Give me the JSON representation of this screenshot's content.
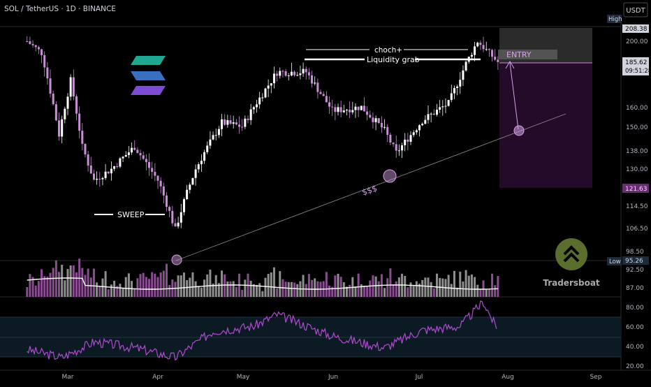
{
  "header": {
    "symbol_line": "SOL / TetherUS · 1D · BINANCE",
    "currency": "USDT"
  },
  "price_axis": {
    "ticks": [
      "200.00",
      "160.00",
      "150.00",
      "138.00",
      "130.00",
      "114.50",
      "106.50",
      "98.50",
      "92.50",
      "87.00"
    ],
    "high_label": "High",
    "high_value": "208.38",
    "last_value": "185.62",
    "countdown": "09:51:28",
    "stop_value": "121.63",
    "low_label": "Low",
    "low_value": "95.26"
  },
  "rsi_axis": {
    "ticks": [
      "80.00",
      "60.00",
      "40.00",
      "20.00"
    ]
  },
  "time_axis": {
    "ticks": [
      "Mar",
      "Apr",
      "May",
      "Jun",
      "Jul",
      "Aug",
      "Sep"
    ]
  },
  "annotations": {
    "sweep": "SWEEP",
    "choch": "choch+",
    "liquidity": "Liquidity grab",
    "entry": "ENTRY",
    "dollars": "$$$"
  },
  "brand": {
    "name": "Tradersboat"
  },
  "colors": {
    "background": "#000000",
    "candle": "#ffffff",
    "candle_alt": "#c98fd6",
    "accent": "#d6a3e6",
    "volume_up": "#8e8e8e",
    "volume_down": "#8a4d92",
    "ma": "#ffffff",
    "rsi": "#b14bd1",
    "zone_gray": "#3a3a3a",
    "zone_purple": "#2c0d31",
    "brand_green": "#5c6e2e"
  },
  "chart_data": {
    "type": "candlestick",
    "symbol": "SOL/USDT",
    "timeframe": "1D",
    "y_axis_prices": [
      87.0,
      92.5,
      98.5,
      106.5,
      114.5,
      121.63,
      130.0,
      138.0,
      150.0,
      160.0,
      185.62,
      200.0,
      208.38
    ],
    "close_path": [
      {
        "date": "2025-02-15",
        "price": 200
      },
      {
        "date": "2025-02-20",
        "price": 192
      },
      {
        "date": "2025-02-26",
        "price": 146
      },
      {
        "date": "2025-03-02",
        "price": 175
      },
      {
        "date": "2025-03-06",
        "price": 140
      },
      {
        "date": "2025-03-10",
        "price": 125
      },
      {
        "date": "2025-03-16",
        "price": 130
      },
      {
        "date": "2025-03-24",
        "price": 140
      },
      {
        "date": "2025-04-01",
        "price": 125
      },
      {
        "date": "2025-04-07",
        "price": 106
      },
      {
        "date": "2025-04-14",
        "price": 130
      },
      {
        "date": "2025-04-23",
        "price": 152
      },
      {
        "date": "2025-04-30",
        "price": 150
      },
      {
        "date": "2025-05-12",
        "price": 180
      },
      {
        "date": "2025-05-22",
        "price": 180
      },
      {
        "date": "2025-05-31",
        "price": 158
      },
      {
        "date": "2025-06-10",
        "price": 160
      },
      {
        "date": "2025-06-18",
        "price": 148
      },
      {
        "date": "2025-06-22",
        "price": 137
      },
      {
        "date": "2025-07-01",
        "price": 153
      },
      {
        "date": "2025-07-10",
        "price": 162
      },
      {
        "date": "2025-07-20",
        "price": 200
      },
      {
        "date": "2025-07-27",
        "price": 185.62
      }
    ],
    "levels": {
      "high": 208.38,
      "last": 185.62,
      "stop": 121.63,
      "low": 95.26
    },
    "rsi": {
      "bands": [
        70,
        50,
        30
      ],
      "ticks": [
        80,
        60,
        40,
        20
      ],
      "values": [
        {
          "date": "2025-02-15",
          "rsi": 36
        },
        {
          "date": "2025-02-27",
          "rsi": 28
        },
        {
          "date": "2025-03-10",
          "rsi": 44
        },
        {
          "date": "2025-03-24",
          "rsi": 38
        },
        {
          "date": "2025-04-07",
          "rsi": 28
        },
        {
          "date": "2025-04-20",
          "rsi": 55
        },
        {
          "date": "2025-05-04",
          "rsi": 60
        },
        {
          "date": "2025-05-12",
          "rsi": 72
        },
        {
          "date": "2025-05-31",
          "rsi": 50
        },
        {
          "date": "2025-06-18",
          "rsi": 38
        },
        {
          "date": "2025-07-01",
          "rsi": 56
        },
        {
          "date": "2025-07-14",
          "rsi": 60
        },
        {
          "date": "2025-07-22",
          "rsi": 85
        },
        {
          "date": "2025-07-27",
          "rsi": 55
        }
      ]
    },
    "annotations": [
      "SWEEP",
      "choch+",
      "Liquidity grab",
      "ENTRY",
      "$$$"
    ]
  }
}
